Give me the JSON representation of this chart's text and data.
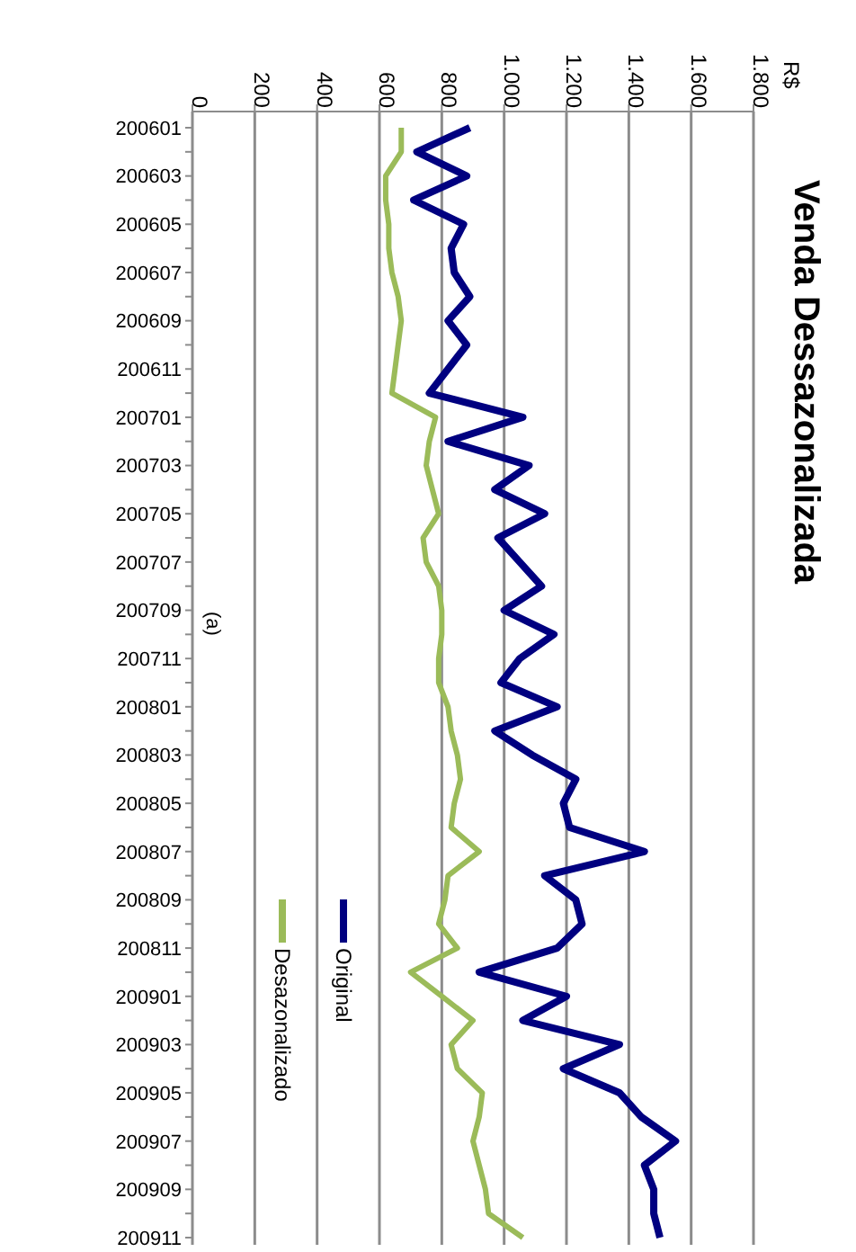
{
  "chart_data": {
    "type": "line",
    "title": "Venda Dessazonalizada",
    "orientation": "horizontal",
    "annotations": [
      "R$",
      "(a)"
    ],
    "categories": [
      "200601",
      null,
      "200603",
      null,
      "200605",
      null,
      "200607",
      null,
      "200609",
      null,
      "200611",
      null,
      "200701",
      null,
      "200703",
      null,
      "200705",
      null,
      "200707",
      null,
      "200709",
      null,
      "200711",
      null,
      "200801",
      null,
      "200803",
      null,
      "200805",
      null,
      "200807",
      null,
      "200809",
      null,
      "200811",
      null,
      "200901",
      null,
      "200903",
      null,
      "200905",
      null,
      "200907",
      null,
      "200909",
      null,
      "200911"
    ],
    "series": [
      {
        "name": "Original",
        "color": "#000080",
        "values": [
          890,
          720,
          880,
          710,
          870,
          830,
          840,
          890,
          820,
          880,
          820,
          760,
          1060,
          820,
          1080,
          970,
          1130,
          980,
          1050,
          1120,
          1000,
          1160,
          1050,
          990,
          1170,
          970,
          1090,
          1230,
          1190,
          1210,
          1450,
          1130,
          1230,
          1250,
          1170,
          920,
          1200,
          1060,
          1370,
          1190,
          1370,
          1440,
          1550,
          1450,
          1480,
          1480,
          1500
        ]
      },
      {
        "name": "Desazonalizado",
        "color": "#9bbb59",
        "values": [
          670,
          670,
          620,
          620,
          630,
          630,
          640,
          660,
          670,
          660,
          650,
          640,
          780,
          760,
          750,
          770,
          790,
          740,
          750,
          790,
          800,
          800,
          790,
          790,
          820,
          830,
          850,
          860,
          840,
          830,
          920,
          820,
          810,
          790,
          850,
          700,
          800,
          900,
          830,
          850,
          930,
          920,
          900,
          920,
          940,
          950,
          1060
        ]
      }
    ],
    "xlim": [
      0,
      1800
    ],
    "xticks": [
      0,
      200,
      400,
      600,
      800,
      {
        "value": 1000,
        "label": "1.000"
      },
      {
        "value": 1200,
        "label": "1.200"
      },
      {
        "value": 1400,
        "label": "1.400"
      },
      {
        "value": 1600,
        "label": "1.600"
      },
      {
        "value": 1800,
        "label": "1.800"
      }
    ],
    "grid": "x",
    "legend": "bottom left",
    "marker": "none",
    "line_style": "solid"
  }
}
